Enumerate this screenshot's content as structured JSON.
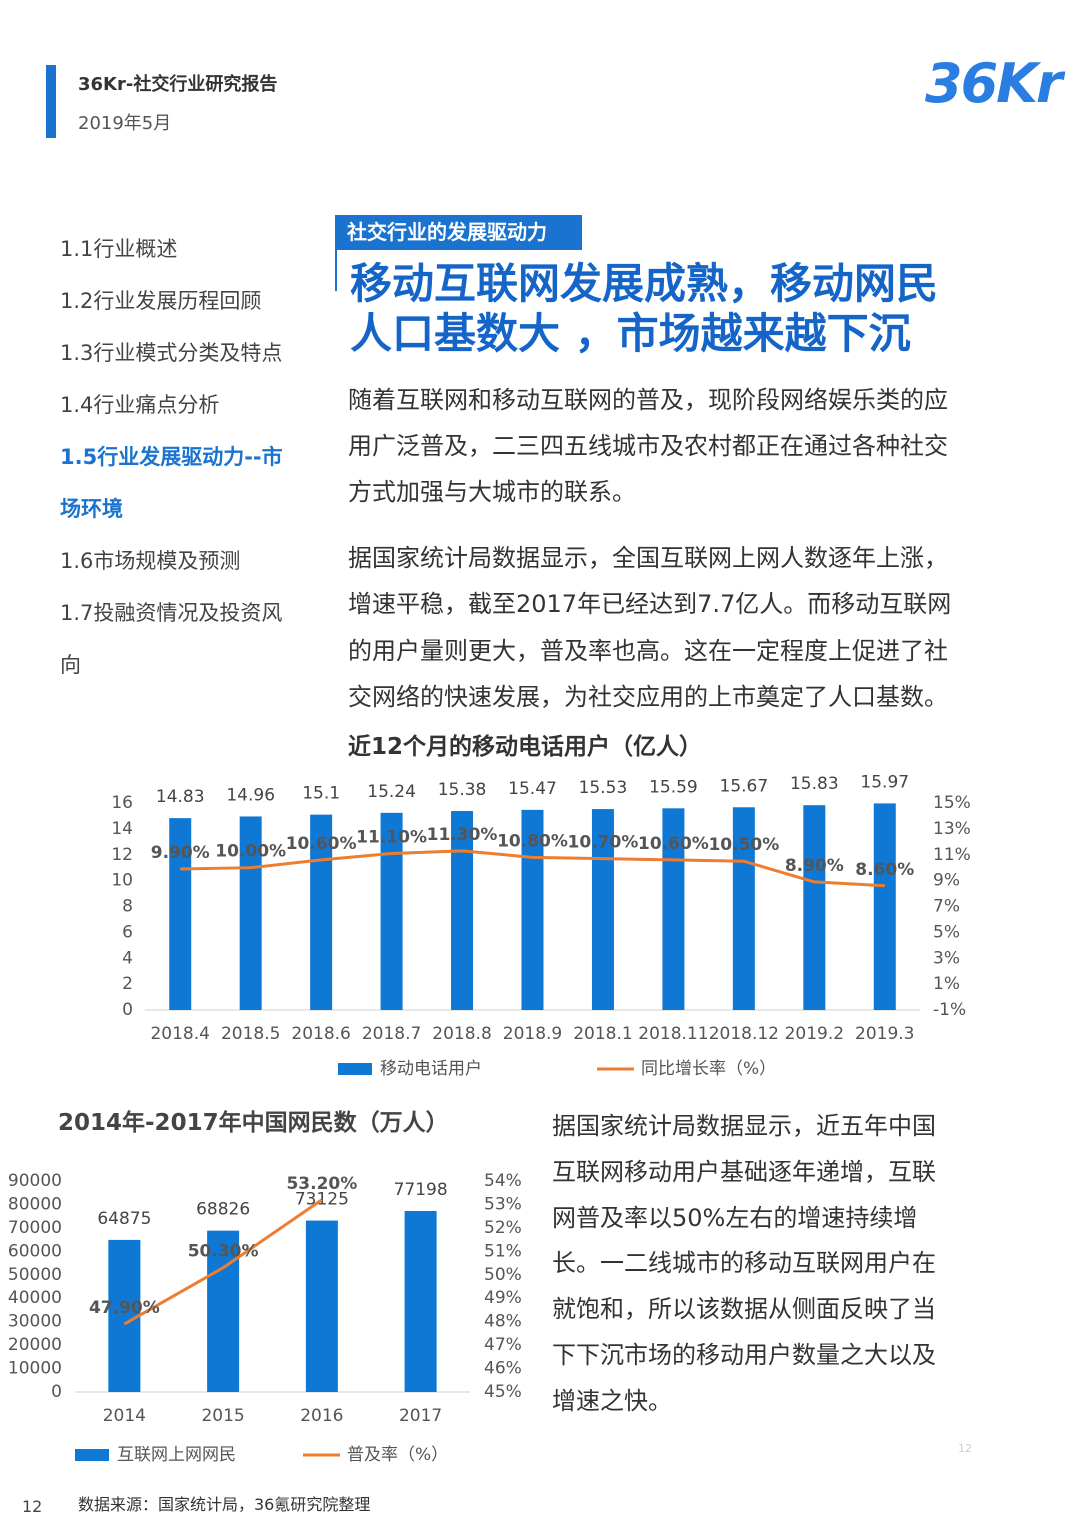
{
  "header": {
    "title": "36Kr-社交行业研究报告",
    "date": "2019年5月",
    "logo": "36Kr"
  },
  "nav": {
    "items": [
      "1.1行业概述",
      "1.2行业发展历程回顾",
      "1.3行业模式分类及特点",
      "1.4行业痛点分析",
      "1.5行业发展驱动力--市场环境",
      "1.6市场规模及预测",
      "1.7投融资情况及投资风向"
    ]
  },
  "section": {
    "tag": "社交行业的发展驱动力",
    "headline": [
      "移动互联网发展成熟，移动网民",
      "人口基数大 ，市场越来越下沉"
    ],
    "paragraphs": [
      [
        "随着互联网和移动互联网的普及，现阶段网络娱乐类的应",
        "用广泛普及，二三四五线城市及农村都正在通过各种社交",
        "方式加强与大城市的联系。"
      ],
      [
        "据国家统计局数据显示，全国互联网上网人数逐年上涨，",
        "增速平稳，截至2017年已经达到7.7亿人。而移动互联网",
        "的用户量则更大，普及率也高。这在一定程度上促进了社",
        "交网络的快速发展，为社交应用的上市奠定了人口基数。"
      ],
      [
        "据国家统计局数据显示，近五年中国",
        "互联网移动用户基础逐年递增，互联",
        "网普及率以50%左右的增速持续增",
        "长。一二线城市的移动互联网用户在",
        "就饱和，所以该数据从侧面反映了当",
        "下下沉市场的移动用户数量之大以及",
        "增速之快。"
      ]
    ]
  },
  "chart_data": [
    {
      "type": "combo",
      "title": "近12个月的移动电话用户（亿人）",
      "categories": [
        "2018.4",
        "2018.5",
        "2018.6",
        "2018.7",
        "2018.8",
        "2018.9",
        "2018.1",
        "2018.11",
        "2018.12",
        "2019.2",
        "2019.3"
      ],
      "series": [
        {
          "name": "移动电话用户",
          "type": "bar",
          "color": "#0f78d4",
          "values": [
            14.83,
            14.96,
            15.1,
            15.24,
            15.38,
            15.47,
            15.53,
            15.59,
            15.67,
            15.83,
            15.97
          ]
        },
        {
          "name": "同比增长率（%）",
          "type": "line",
          "axis": "y2",
          "color": "#ed7d31",
          "values": [
            9.9,
            10.0,
            10.6,
            11.1,
            11.3,
            10.8,
            10.7,
            10.6,
            10.5,
            8.9,
            8.6
          ],
          "value_labels": [
            "9.90%",
            "10.00%",
            "10.60%",
            "11.10%",
            "11.30%",
            "10.80%",
            "10.70%",
            "10.60%",
            "10.50%",
            "8.90%",
            "8.60%"
          ]
        }
      ],
      "ylim": [
        0,
        16
      ],
      "yticks": [
        0,
        2,
        4,
        6,
        8,
        10,
        12,
        14,
        16
      ],
      "y2lim": [
        -1,
        15
      ],
      "y2ticks": [
        {
          "value": -1,
          "label": "-1%"
        },
        {
          "value": 1,
          "label": "1%"
        },
        {
          "value": 3,
          "label": "3%"
        },
        {
          "value": 5,
          "label": "5%"
        },
        {
          "value": 7,
          "label": "7%"
        },
        {
          "value": 9,
          "label": "9%"
        },
        {
          "value": 11,
          "label": "11%"
        },
        {
          "value": 13,
          "label": "13%"
        },
        {
          "value": 15,
          "label": "15%"
        }
      ]
    },
    {
      "type": "combo",
      "title": "2014年-2017年中国网民数（万人）",
      "categories": [
        "2014",
        "2015",
        "2016",
        "2017"
      ],
      "series": [
        {
          "name": "互联网上网网民",
          "type": "bar",
          "color": "#0f78d4",
          "values": [
            64875,
            68826,
            73125,
            77198
          ]
        },
        {
          "name": "普及率（%）",
          "type": "line",
          "axis": "y2",
          "color": "#ed7d31",
          "values": [
            47.9,
            50.3,
            53.2,
            null
          ],
          "value_labels": [
            "47.90%",
            "50.30%",
            "53.20%",
            null
          ]
        }
      ],
      "ylim": [
        0,
        90000
      ],
      "yticks": [
        0,
        10000,
        20000,
        30000,
        40000,
        50000,
        60000,
        70000,
        80000,
        90000
      ],
      "y2lim": [
        45,
        54
      ],
      "y2ticks": [
        {
          "value": 45,
          "label": "45%"
        },
        {
          "value": 46,
          "label": "46%"
        },
        {
          "value": 47,
          "label": "47%"
        },
        {
          "value": 48,
          "label": "48%"
        },
        {
          "value": 49,
          "label": "49%"
        },
        {
          "value": 50,
          "label": "50%"
        },
        {
          "value": 51,
          "label": "51%"
        },
        {
          "value": 52,
          "label": "52%"
        },
        {
          "value": 53,
          "label": "53%"
        },
        {
          "value": 54,
          "label": "54%"
        }
      ]
    }
  ],
  "footer": {
    "page_number": "12",
    "source": "数据来源：国家统计局，36氪研究院整理",
    "watermark": "12"
  }
}
